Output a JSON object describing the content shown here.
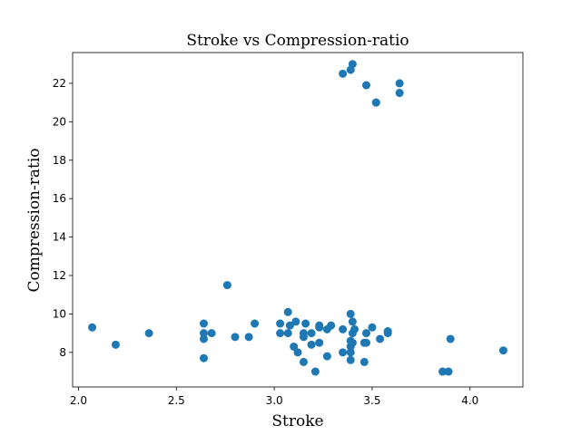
{
  "chart_data": {
    "type": "scatter",
    "title": "Stroke vs Compression-ratio",
    "xlabel": "Stroke",
    "ylabel": "Compression-ratio",
    "xlim": [
      1.97,
      4.27
    ],
    "ylim": [
      6.2,
      23.6
    ],
    "xticks": [
      2.0,
      2.5,
      3.0,
      3.5,
      4.0
    ],
    "xtick_labels": [
      "2.0",
      "2.5",
      "3.0",
      "3.5",
      "4.0"
    ],
    "yticks": [
      8,
      10,
      12,
      14,
      16,
      18,
      20,
      22
    ],
    "ytick_labels": [
      "8",
      "10",
      "12",
      "14",
      "16",
      "18",
      "20",
      "22"
    ],
    "grid": false,
    "marker_color": "#1f77b4",
    "series": [
      {
        "x": [
          2.07,
          2.19,
          2.36,
          2.64,
          2.64,
          2.64,
          2.64,
          2.68,
          2.76,
          2.8,
          2.87,
          2.9,
          3.03,
          3.03,
          3.07,
          3.07,
          3.08,
          3.1,
          3.11,
          3.12,
          3.15,
          3.15,
          3.15,
          3.16,
          3.19,
          3.19,
          3.21,
          3.23,
          3.23,
          3.23,
          3.27,
          3.27,
          3.29,
          3.35,
          3.35,
          3.39,
          3.39,
          3.39,
          3.39,
          3.39,
          3.4,
          3.4,
          3.4,
          3.41,
          3.46,
          3.46,
          3.47,
          3.47,
          3.5,
          3.52,
          3.54,
          3.58,
          3.58,
          3.86,
          3.89,
          3.9,
          4.17,
          3.35,
          3.39,
          3.4,
          3.47,
          3.52,
          3.64,
          3.64
        ],
        "y": [
          9.3,
          8.4,
          9.0,
          9.5,
          9.0,
          8.7,
          7.7,
          9.0,
          11.5,
          8.8,
          8.8,
          9.5,
          9.5,
          9.0,
          10.1,
          9.0,
          9.4,
          8.3,
          9.6,
          8.0,
          9.0,
          8.8,
          7.5,
          9.5,
          9.0,
          8.4,
          7.0,
          9.4,
          9.3,
          8.5,
          9.2,
          7.8,
          9.4,
          9.2,
          8.0,
          10.0,
          8.6,
          8.3,
          8.0,
          7.6,
          9.6,
          9.0,
          8.5,
          9.2,
          8.5,
          7.5,
          9.0,
          8.5,
          9.3,
          21.0,
          8.7,
          9.0,
          9.1,
          7.0,
          7.0,
          8.7,
          8.1,
          22.5,
          22.7,
          23.0,
          21.9,
          21.0,
          22.0,
          21.5
        ]
      }
    ]
  }
}
